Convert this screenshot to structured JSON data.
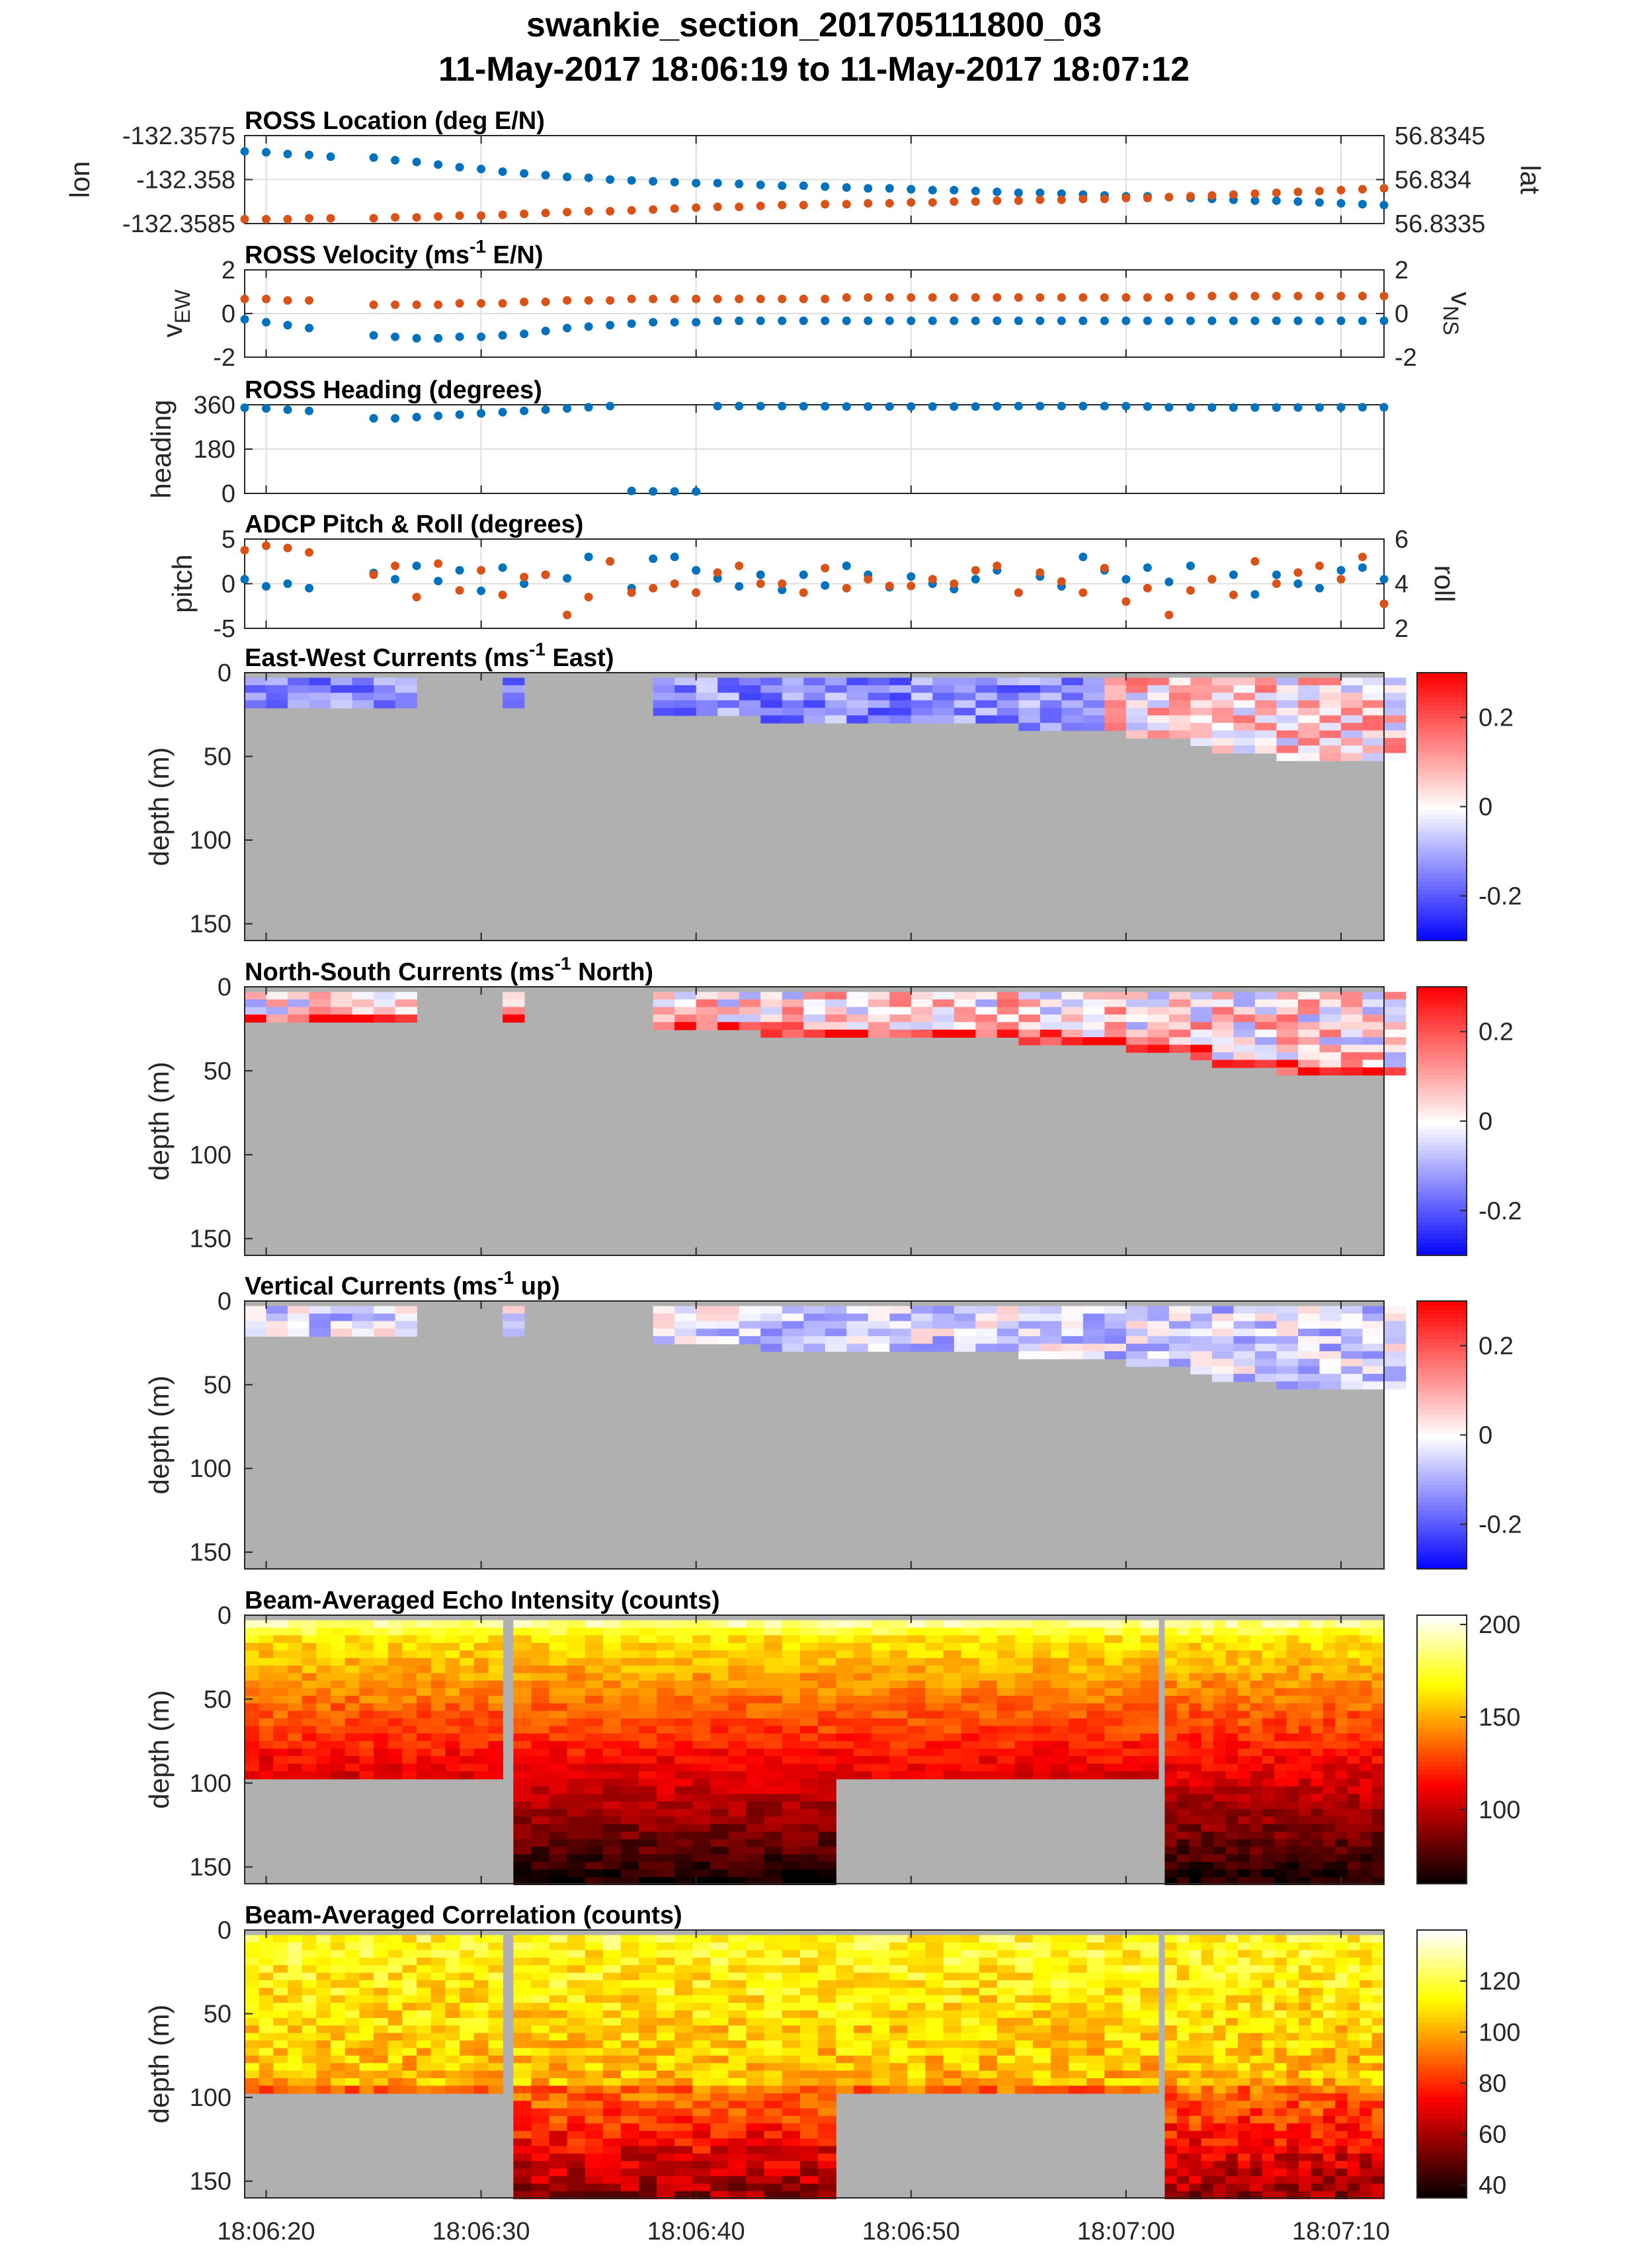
{
  "figure": {
    "title_line1": "swankie_section_201705111800_03",
    "title_line2": "11-May-2017 18:06:19 to 11-May-2017 18:07:12"
  },
  "colors": {
    "blue": "#0072BD",
    "orange": "#D95319",
    "nodata": "#b0b0b0",
    "grid": "#dedede"
  },
  "chart_data": [
    {
      "id": "location",
      "type": "scatter",
      "title": "ROSS Location (deg E/N)",
      "ylabel_left": "lon",
      "ylabel_right": "lat",
      "yticks_left": [
        "-132.3575",
        "-132.358",
        "-132.3585"
      ],
      "yticks_right": [
        "56.8345",
        "56.834",
        "56.8335"
      ],
      "ylim_left": [
        -132.3585,
        -132.3575
      ],
      "ylim_right": [
        56.8335,
        56.8345
      ],
      "series": [
        {
          "name": "lon",
          "axis": "left",
          "color": "#0072BD",
          "x": [
            0,
            1,
            2,
            3,
            4,
            6,
            7,
            8,
            9,
            10,
            11,
            12,
            13,
            14,
            15,
            16,
            17,
            18,
            19,
            20,
            21,
            22,
            23,
            24,
            25,
            26,
            27,
            28,
            29,
            30,
            31,
            32,
            33,
            34,
            35,
            36,
            37,
            38,
            39,
            40,
            41,
            42,
            43,
            44,
            45,
            46,
            47,
            48,
            49,
            50,
            51,
            52,
            53
          ],
          "y": [
            -132.35768,
            -132.35769,
            -132.35771,
            -132.35772,
            -132.35774,
            -132.35775,
            -132.35778,
            -132.3578,
            -132.35783,
            -132.35786,
            -132.35788,
            -132.35791,
            -132.35793,
            -132.35795,
            -132.35797,
            -132.35798,
            -132.358,
            -132.35801,
            -132.35802,
            -132.35803,
            -132.35804,
            -132.35804,
            -132.35805,
            -132.35806,
            -132.35807,
            -132.35807,
            -132.35808,
            -132.35809,
            -132.3581,
            -132.3581,
            -132.35811,
            -132.35812,
            -132.35812,
            -132.35813,
            -132.35814,
            -132.35815,
            -132.35815,
            -132.35816,
            -132.35817,
            -132.35818,
            -132.35819,
            -132.35819,
            -132.3582,
            -132.35821,
            -132.35822,
            -132.35823,
            -132.35824,
            -132.35824,
            -132.35825,
            -132.35826,
            -132.35827,
            -132.35828,
            -132.35829
          ]
        },
        {
          "name": "lat",
          "axis": "right",
          "color": "#D95319",
          "x": [
            0,
            1,
            2,
            3,
            4,
            6,
            7,
            8,
            9,
            10,
            11,
            12,
            13,
            14,
            15,
            16,
            17,
            18,
            19,
            20,
            21,
            22,
            23,
            24,
            25,
            26,
            27,
            28,
            29,
            30,
            31,
            32,
            33,
            34,
            35,
            36,
            37,
            38,
            39,
            40,
            41,
            42,
            43,
            44,
            45,
            46,
            47,
            48,
            49,
            50,
            51,
            52,
            53
          ],
          "y": [
            56.83355,
            56.83355,
            56.83355,
            56.83356,
            56.83356,
            56.83356,
            56.83357,
            56.83357,
            56.83358,
            56.83359,
            56.83359,
            56.8336,
            56.83361,
            56.83362,
            56.83363,
            56.83364,
            56.83364,
            56.83365,
            56.83366,
            56.83367,
            56.83368,
            56.83369,
            56.83369,
            56.8337,
            56.83371,
            56.83371,
            56.83372,
            56.83372,
            56.83373,
            56.83373,
            56.83374,
            56.83374,
            56.83375,
            56.83375,
            56.83376,
            56.83376,
            56.83377,
            56.83377,
            56.83378,
            56.83378,
            56.83379,
            56.83379,
            56.8338,
            56.83381,
            56.83382,
            56.83383,
            56.83384,
            56.83385,
            56.83386,
            56.83387,
            56.83388,
            56.83389,
            56.8339
          ]
        }
      ]
    },
    {
      "id": "velocity",
      "type": "scatter",
      "title_prefix": "ROSS Velocity (ms",
      "title_sup": "-1",
      "title_suffix": " E/N)",
      "ylabel_left": "v",
      "ylabel_left_sub": "EW",
      "ylabel_right": "v",
      "ylabel_right_sub": "NS",
      "yticks_left": [
        "2",
        "0",
        "-2"
      ],
      "yticks_right": [
        "2",
        "0",
        "-2"
      ],
      "ylim": [
        -3,
        3
      ],
      "series": [
        {
          "name": "vEW",
          "axis": "left",
          "color": "#0072BD",
          "x": [
            0,
            1,
            2,
            3,
            6,
            7,
            8,
            9,
            10,
            11,
            12,
            13,
            14,
            15,
            16,
            17,
            18,
            19,
            20,
            21,
            22,
            23,
            24,
            25,
            26,
            27,
            28,
            29,
            30,
            31,
            32,
            33,
            34,
            35,
            36,
            37,
            38,
            39,
            40,
            41,
            42,
            43,
            44,
            45,
            46,
            47,
            48,
            49,
            50,
            51,
            52,
            53
          ],
          "y": [
            -0.4,
            -0.6,
            -0.8,
            -1.0,
            -1.5,
            -1.6,
            -1.7,
            -1.7,
            -1.6,
            -1.6,
            -1.5,
            -1.4,
            -1.2,
            -1.0,
            -0.9,
            -0.8,
            -0.7,
            -0.6,
            -0.6,
            -0.6,
            -0.5,
            -0.5,
            -0.5,
            -0.5,
            -0.5,
            -0.5,
            -0.5,
            -0.5,
            -0.5,
            -0.5,
            -0.5,
            -0.5,
            -0.5,
            -0.5,
            -0.5,
            -0.5,
            -0.5,
            -0.5,
            -0.5,
            -0.5,
            -0.5,
            -0.5,
            -0.5,
            -0.5,
            -0.5,
            -0.5,
            -0.5,
            -0.5,
            -0.5,
            -0.5,
            -0.5,
            -0.5
          ]
        },
        {
          "name": "vNS",
          "axis": "right",
          "color": "#D95319",
          "x": [
            0,
            1,
            2,
            3,
            6,
            7,
            8,
            9,
            10,
            11,
            12,
            13,
            14,
            15,
            16,
            17,
            18,
            19,
            20,
            21,
            22,
            23,
            24,
            25,
            26,
            27,
            28,
            29,
            30,
            31,
            32,
            33,
            34,
            35,
            36,
            37,
            38,
            39,
            40,
            41,
            42,
            43,
            44,
            45,
            46,
            47,
            48,
            49,
            50,
            51,
            52,
            53
          ],
          "y": [
            1.0,
            1.0,
            0.9,
            0.9,
            0.6,
            0.6,
            0.6,
            0.6,
            0.7,
            0.7,
            0.7,
            0.8,
            0.8,
            0.9,
            0.9,
            0.9,
            1.0,
            1.0,
            1.0,
            1.0,
            1.0,
            1.0,
            1.0,
            1.0,
            1.0,
            1.0,
            1.1,
            1.1,
            1.1,
            1.1,
            1.1,
            1.1,
            1.1,
            1.1,
            1.1,
            1.1,
            1.1,
            1.1,
            1.1,
            1.1,
            1.1,
            1.1,
            1.2,
            1.2,
            1.2,
            1.2,
            1.2,
            1.2,
            1.2,
            1.2,
            1.2,
            1.2
          ]
        }
      ]
    },
    {
      "id": "heading",
      "type": "scatter",
      "title": "ROSS Heading (degrees)",
      "ylabel_left": "heading",
      "yticks_left": [
        "360",
        "180",
        "0"
      ],
      "ylim": [
        0,
        360
      ],
      "series": [
        {
          "name": "heading",
          "axis": "left",
          "color": "#0072BD",
          "x": [
            0,
            1,
            2,
            3,
            6,
            7,
            8,
            9,
            10,
            11,
            12,
            13,
            14,
            15,
            16,
            17,
            18,
            19,
            20,
            21,
            22,
            23,
            24,
            25,
            26,
            27,
            28,
            29,
            30,
            31,
            32,
            33,
            34,
            35,
            36,
            37,
            38,
            39,
            40,
            41,
            42,
            43,
            44,
            45,
            46,
            47,
            48,
            49,
            50,
            51,
            52,
            53
          ],
          "y": [
            348,
            345,
            340,
            335,
            305,
            305,
            310,
            315,
            320,
            325,
            330,
            335,
            340,
            345,
            350,
            355,
            10,
            8,
            8,
            8,
            358,
            356,
            355,
            355,
            354,
            354,
            353,
            353,
            353,
            353,
            353,
            353,
            353,
            354,
            355,
            356,
            357,
            357,
            356,
            355,
            353,
            350,
            350,
            349,
            349,
            349,
            349,
            349,
            349,
            350,
            350,
            350
          ]
        }
      ]
    },
    {
      "id": "pitchroll",
      "type": "scatter",
      "title": "ADCP Pitch & Roll (degrees)",
      "ylabel_left": "pitch",
      "ylabel_right": "roll",
      "yticks_left": [
        "5",
        "0",
        "-5"
      ],
      "yticks_right": [
        "6",
        "4",
        "2"
      ],
      "ylim_left": [
        -5,
        5
      ],
      "ylim_right": [
        2,
        6
      ],
      "series": [
        {
          "name": "pitch",
          "axis": "left",
          "color": "#0072BD",
          "x": [
            0,
            1,
            2,
            3,
            6,
            7,
            8,
            9,
            10,
            11,
            12,
            13,
            14,
            15,
            16,
            17,
            18,
            19,
            20,
            21,
            22,
            23,
            24,
            25,
            26,
            27,
            28,
            29,
            30,
            31,
            32,
            33,
            34,
            35,
            36,
            37,
            38,
            39,
            40,
            41,
            42,
            43,
            44,
            45,
            46,
            47,
            48,
            49,
            50,
            51,
            52,
            53
          ],
          "y": [
            0.5,
            -0.3,
            0.0,
            -0.5,
            1.2,
            0.5,
            2.0,
            0.3,
            1.5,
            -0.8,
            1.8,
            0.0,
            1.0,
            0.6,
            3.0,
            2.5,
            -0.5,
            2.8,
            3.0,
            1.5,
            0.6,
            -0.3,
            1.0,
            -0.7,
            1.0,
            -0.2,
            2.0,
            1.0,
            -0.4,
            0.8,
            0.0,
            -0.6,
            0.5,
            1.5,
            -1.0,
            0.8,
            -0.3,
            3.0,
            1.5,
            0.5,
            1.8,
            0.2,
            2.0,
            0.5,
            1.0,
            -1.2,
            1.0,
            0.0,
            -0.5,
            1.5,
            1.8,
            0.5
          ]
        },
        {
          "name": "roll",
          "axis": "right",
          "color": "#D95319",
          "x": [
            0,
            1,
            2,
            3,
            6,
            7,
            8,
            9,
            10,
            11,
            12,
            13,
            14,
            15,
            16,
            17,
            18,
            19,
            20,
            21,
            22,
            23,
            24,
            25,
            26,
            27,
            28,
            29,
            30,
            31,
            32,
            33,
            34,
            35,
            36,
            37,
            38,
            39,
            40,
            41,
            42,
            43,
            44,
            45,
            46,
            47,
            48,
            49,
            50,
            51,
            52,
            53
          ],
          "y": [
            5.5,
            5.7,
            5.6,
            5.4,
            4.4,
            4.8,
            3.4,
            4.9,
            3.7,
            4.6,
            3.5,
            4.3,
            4.4,
            2.6,
            3.4,
            5.0,
            3.6,
            3.8,
            4.0,
            3.6,
            4.5,
            4.8,
            4.0,
            4.0,
            3.6,
            4.7,
            3.8,
            4.2,
            3.9,
            3.9,
            4.2,
            4.0,
            4.6,
            4.8,
            3.6,
            4.5,
            4.1,
            3.6,
            4.7,
            3.2,
            3.8,
            2.6,
            3.7,
            4.2,
            3.5,
            5.0,
            4.0,
            4.5,
            4.8,
            4.2,
            5.2,
            3.1
          ]
        }
      ]
    },
    {
      "id": "ew",
      "type": "heatmap",
      "title_prefix": "East-West Currents (ms",
      "title_sup": "-1",
      "title_suffix": " East)",
      "ylabel": "depth (m)",
      "yticks": [
        "0",
        "50",
        "100",
        "150"
      ],
      "ylim": [
        0,
        160
      ],
      "clim": [
        -0.3,
        0.3
      ],
      "cticks": [
        "0.2",
        "0",
        "-0.2"
      ],
      "colormap": "blue-white-red",
      "coverage_depth_max_m": [
        18,
        18,
        18,
        18,
        18,
        18,
        18,
        18,
        null,
        null,
        null,
        null,
        18,
        null,
        null,
        null,
        null,
        null,
        null,
        25,
        25,
        25,
        25,
        25,
        26,
        26,
        27,
        27,
        27,
        28,
        28,
        29,
        29,
        30,
        30,
        30,
        31,
        31,
        32,
        33,
        34,
        35,
        36,
        38,
        40,
        45,
        47,
        48,
        49,
        50,
        52,
        52,
        52,
        52
      ],
      "value_text": "surface currents mostly -0.3 (blue) early, mixed ±0.3 near 18:07:00"
    },
    {
      "id": "ns",
      "type": "heatmap",
      "title_prefix": "North-South Currents (ms",
      "title_sup": "-1",
      "title_suffix": " North)",
      "ylabel": "depth (m)",
      "yticks": [
        "0",
        "50",
        "100",
        "150"
      ],
      "ylim": [
        0,
        160
      ],
      "clim": [
        -0.3,
        0.3
      ],
      "cticks": [
        "0.2",
        "0",
        "-0.2"
      ],
      "colormap": "blue-white-red"
    },
    {
      "id": "vert",
      "type": "heatmap",
      "title_prefix": "Vertical Currents (ms",
      "title_sup": "-1",
      "title_suffix": " up)",
      "ylabel": "depth (m)",
      "yticks": [
        "0",
        "50",
        "100",
        "150"
      ],
      "ylim": [
        0,
        160
      ],
      "clim": [
        -0.3,
        0.3
      ],
      "cticks": [
        "0.2",
        "0",
        "-0.2"
      ],
      "colormap": "blue-white-red"
    },
    {
      "id": "echo",
      "type": "heatmap",
      "title": "Beam-Averaged Echo Intensity (counts)",
      "ylabel": "depth (m)",
      "yticks": [
        "0",
        "50",
        "100",
        "150"
      ],
      "ylim": [
        0,
        160
      ],
      "clim": [
        60,
        205
      ],
      "cticks": [
        "200",
        "150",
        "100"
      ],
      "colormap": "hot"
    },
    {
      "id": "corr",
      "type": "heatmap",
      "title": "Beam-Averaged Correlation (counts)",
      "ylabel": "depth (m)",
      "yticks": [
        "0",
        "50",
        "100",
        "150"
      ],
      "ylim": [
        0,
        160
      ],
      "clim": [
        35,
        140
      ],
      "cticks": [
        "120",
        "100",
        "80",
        "60",
        "40"
      ],
      "colormap": "hot"
    }
  ],
  "xaxis": {
    "range_s": [
      0,
      53
    ],
    "tick_labels": [
      "18:06:20",
      "18:06:30",
      "18:06:40",
      "18:06:50",
      "18:07:00",
      "18:07:10"
    ],
    "tick_values_s": [
      1,
      11,
      21,
      31,
      41,
      51
    ]
  },
  "segments": {
    "echo_corr": [
      [
        0,
        12,
        95
      ],
      [
        12.5,
        27.5,
        160
      ],
      [
        27.5,
        42.5,
        95
      ],
      [
        42.8,
        53,
        160
      ]
    ]
  }
}
